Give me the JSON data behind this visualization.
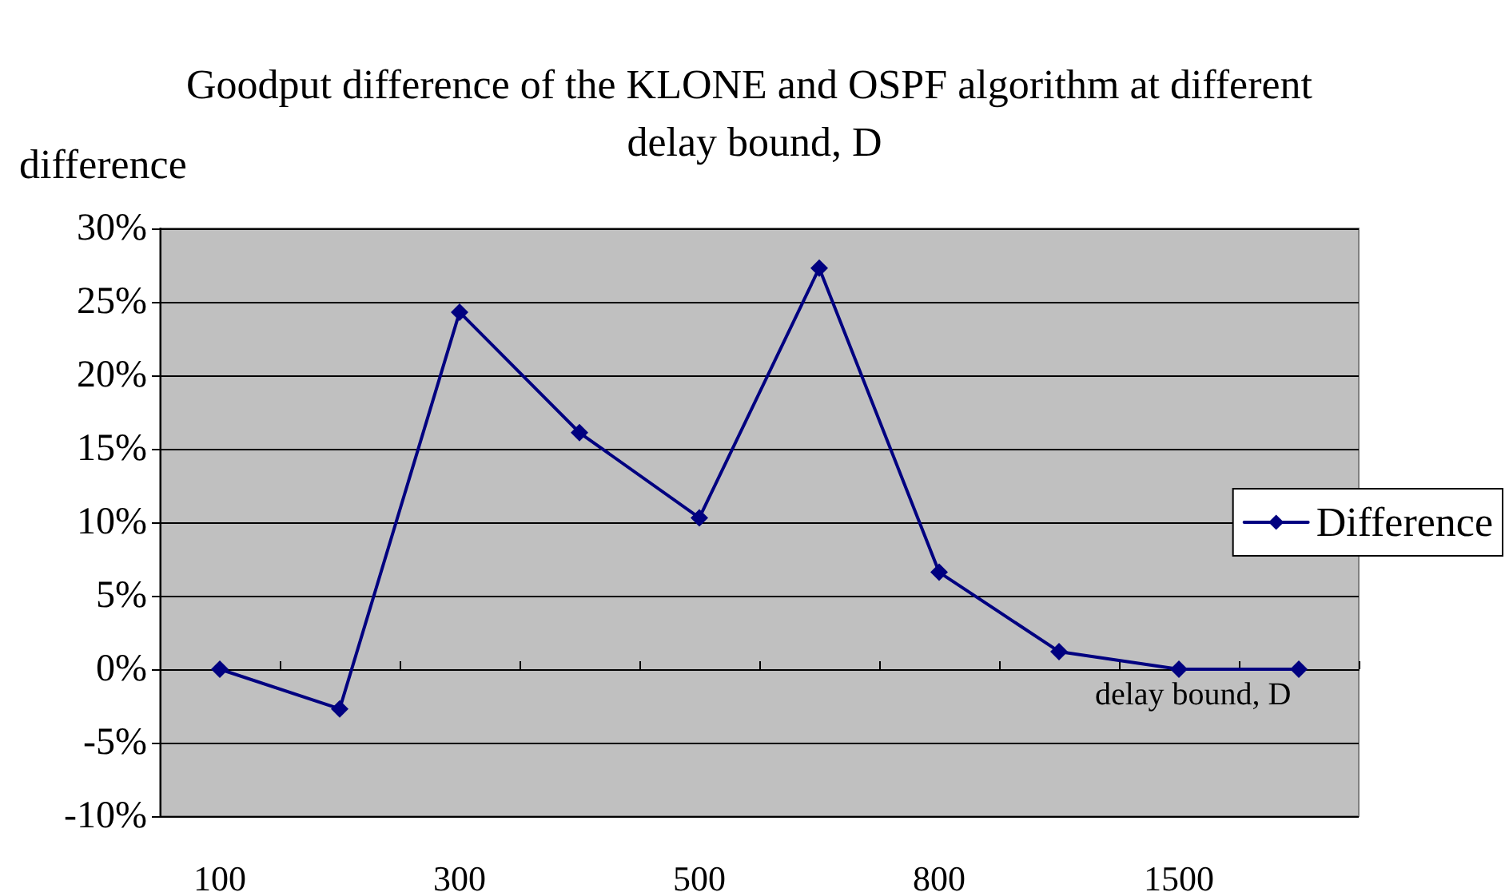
{
  "chart_data": {
    "type": "line",
    "title": "Goodput difference of the KLONE and OSPF algorithm at different delay bound, D",
    "xlabel": "delay bound, D",
    "ylabel": "difference",
    "categories": [
      "100",
      null,
      "300",
      null,
      "500",
      null,
      "800",
      null,
      "1500",
      null
    ],
    "series": [
      {
        "name": "Difference",
        "color": "#000080",
        "values": [
          0,
          -2.7,
          24.3,
          16.1,
          10.3,
          27.3,
          6.6,
          1.2,
          0,
          0
        ]
      }
    ],
    "ylim": [
      -10,
      30
    ],
    "yticks": [
      {
        "value": -10,
        "label": "-10%"
      },
      {
        "value": -5,
        "label": "-5%"
      },
      {
        "value": 0,
        "label": "0%"
      },
      {
        "value": 5,
        "label": "5%"
      },
      {
        "value": 10,
        "label": "10%"
      },
      {
        "value": 15,
        "label": "15%"
      },
      {
        "value": 20,
        "label": "20%"
      },
      {
        "value": 25,
        "label": "25%"
      },
      {
        "value": 30,
        "label": "30%"
      }
    ],
    "grid": "y",
    "legend": "right",
    "marker": "diamond",
    "line_style": "solid"
  }
}
